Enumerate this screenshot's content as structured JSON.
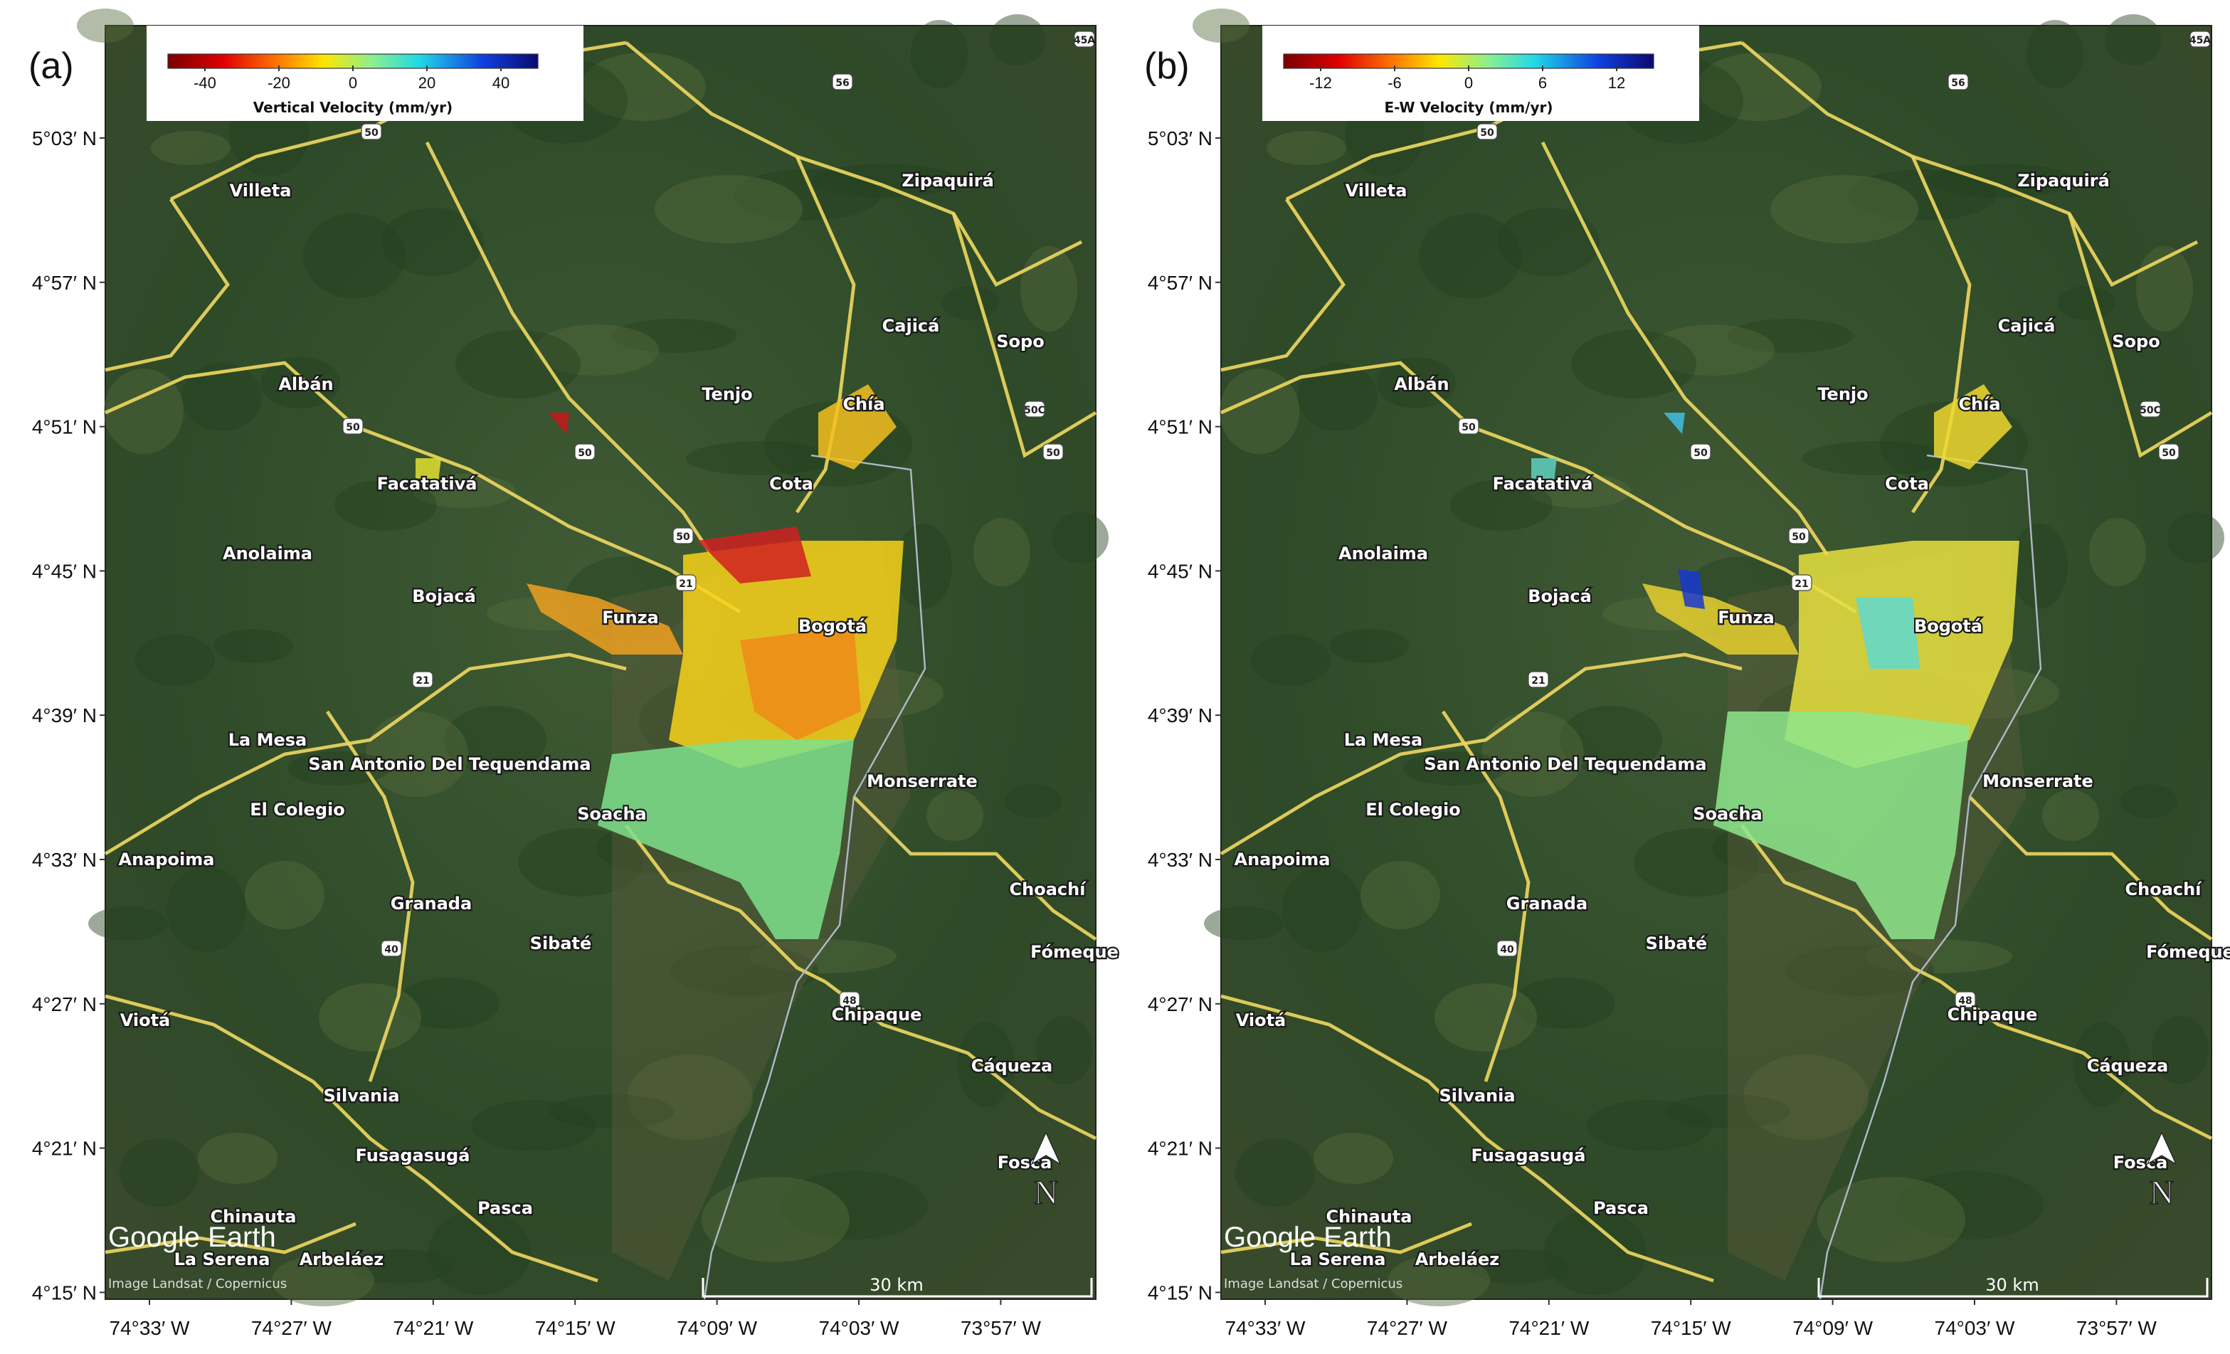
{
  "panels": [
    {
      "label": "(a)",
      "colorbar_title": "Vertical Velocity (mm/yr)",
      "colorbar_lim": [
        -50,
        50
      ],
      "colorbar_ticks": [
        -40,
        -20,
        0,
        20,
        40
      ]
    },
    {
      "label": "(b)",
      "colorbar_title": "E-W Velocity (mm/yr)",
      "colorbar_lim": [
        -15,
        15
      ],
      "colorbar_ticks": [
        -12,
        -6,
        0,
        6,
        12
      ]
    }
  ],
  "map": {
    "lat_ticks": [
      "5°03′ N",
      "4°57′ N",
      "4°51′ N",
      "4°45′ N",
      "4°39′ N",
      "4°33′ N",
      "4°27′ N",
      "4°21′ N",
      "4°15′ N"
    ],
    "lon_ticks": [
      "74°33′ W",
      "74°27′ W",
      "74°21′ W",
      "74°15′ W",
      "74°09′ W",
      "74°03′ W",
      "73°57′ W"
    ],
    "places": [
      "Villeta",
      "Zipaquirá",
      "Cajicá",
      "Sopo",
      "Albán",
      "Tenjo",
      "Chía",
      "Facatativá",
      "Cota",
      "Anolaima",
      "Bojacá",
      "Funza",
      "Bogotá",
      "La Mesa",
      "San Antonio Del Tequendama",
      "Monserrate",
      "El Colegio",
      "Soacha",
      "Anapoima",
      "Choachí",
      "Granada",
      "Sibaté",
      "Fómeque",
      "Viotá",
      "Chipaque",
      "Cáqueza",
      "Silvania",
      "Fusagasugá",
      "Fosca",
      "Pasca",
      "Chinauta",
      "La Serena",
      "Arbeláez"
    ],
    "road_shields": [
      "45A",
      "56",
      "50",
      "50",
      "50",
      "50C",
      "50",
      "50",
      "21",
      "21",
      "40",
      "48"
    ],
    "scale_bar": "30 km",
    "logo": "Google Earth",
    "attribution": "Image Landsat / Copernicus",
    "north": "N"
  }
}
